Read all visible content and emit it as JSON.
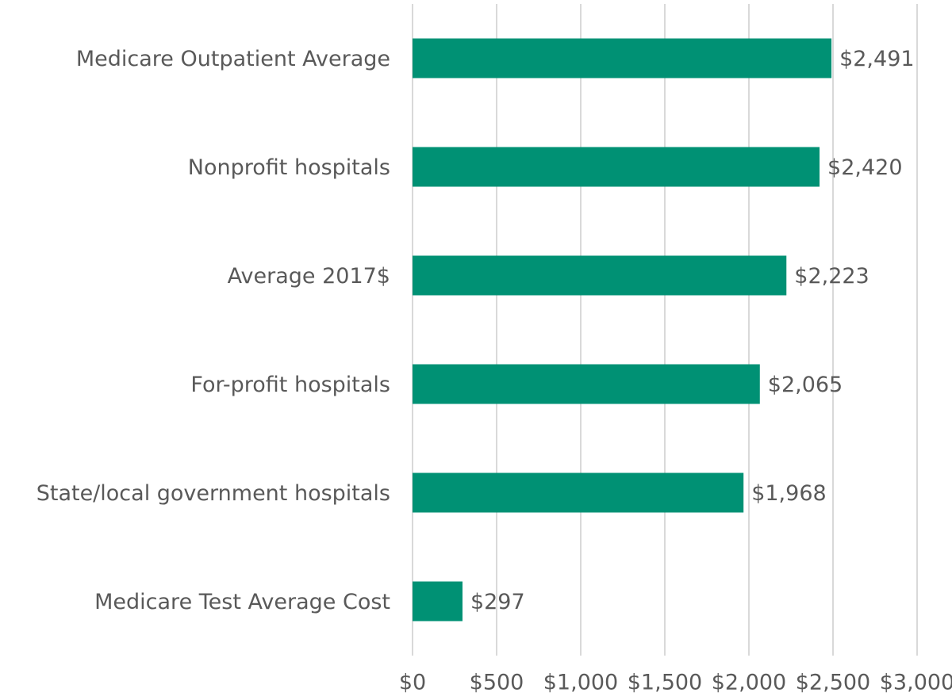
{
  "chart_data": {
    "type": "bar",
    "orientation": "horizontal",
    "categories": [
      "Medicare Outpatient Average",
      "Nonprofit hospitals",
      "Average 2017$",
      "For-profit hospitals",
      "State/local government hospitals",
      "Medicare Test Average Cost"
    ],
    "values": [
      2491,
      2420,
      2223,
      2065,
      1968,
      297
    ],
    "value_labels": [
      "$2,491",
      "$2,420",
      "$2,223",
      "$2,065",
      "$1,968",
      "$297"
    ],
    "color": "#009174",
    "xlim": [
      0,
      3000
    ],
    "xticks": [
      {
        "value": 0,
        "label": "$0"
      },
      {
        "value": 500,
        "label": "$500"
      },
      {
        "value": 1000,
        "label": "$1,000"
      },
      {
        "value": 1500,
        "label": "$1,500"
      },
      {
        "value": 2000,
        "label": "$2,000"
      },
      {
        "value": 2500,
        "label": "$2,500"
      },
      {
        "value": 3000,
        "label": "$3,000"
      }
    ],
    "grid": true
  }
}
